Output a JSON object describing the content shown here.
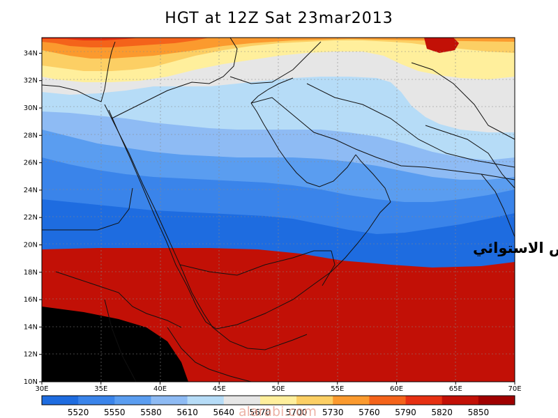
{
  "title": "HGT at 12Z Sat 23mar2013",
  "annotation": "المنخفض الاستوائي",
  "watermark": "alarabi.com",
  "x_ticks": [
    "30E",
    "35E",
    "40E",
    "45E",
    "50E",
    "55E",
    "60E",
    "65E",
    "70E"
  ],
  "y_ticks": [
    "10N",
    "12N",
    "14N",
    "16N",
    "18N",
    "20N",
    "22N",
    "24N",
    "26N",
    "28N",
    "30N",
    "32N",
    "34N"
  ],
  "colorbar": {
    "labels": [
      "5520",
      "5550",
      "5580",
      "5610",
      "5640",
      "5670",
      "5700",
      "5730",
      "5760",
      "5790",
      "5820",
      "5850"
    ],
    "colors": [
      "#1e6ce0",
      "#3a84ea",
      "#5a9df0",
      "#8ebbf4",
      "#b6dcf7",
      "#e6e6e6",
      "#ffef9c",
      "#fccf64",
      "#fb9a2e",
      "#f4631a",
      "#e63012",
      "#c21006",
      "#a00000"
    ]
  },
  "layers": [
    {
      "band": "5520-5550",
      "color": "#1e6ce0"
    },
    {
      "band": "5550-5580",
      "color": "#3a84ea"
    },
    {
      "band": "5580-5610",
      "color": "#5a9df0"
    },
    {
      "band": "5610-5640",
      "color": "#8ebbf4"
    },
    {
      "band": "5640-5670",
      "color": "#b6dcf7"
    },
    {
      "band": "5670-5700",
      "color": "#e6e6e6"
    },
    {
      "band": "5700-5730",
      "color": "#ffef9c"
    },
    {
      "band": "5730-5760",
      "color": "#fccf64"
    },
    {
      "band": "5760-5790",
      "color": "#fb9a2e"
    },
    {
      "band": "5790-5820",
      "color": "#f4631a"
    },
    {
      "band": "5820-5850",
      "color": "#e63012"
    },
    {
      "band": "5850+",
      "color": "#c21006"
    }
  ]
}
